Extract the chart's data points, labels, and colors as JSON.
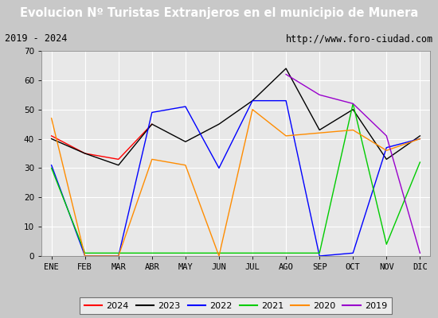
{
  "title": "Evolucion Nº Turistas Extranjeros en el municipio de Munera",
  "subtitle_left": "2019 - 2024",
  "subtitle_right": "http://www.foro-ciudad.com",
  "months": [
    "ENE",
    "FEB",
    "MAR",
    "ABR",
    "MAY",
    "JUN",
    "JUL",
    "AGO",
    "SEP",
    "OCT",
    "NOV",
    "DIC"
  ],
  "series": {
    "2024": {
      "color": "#ff0000",
      "data": [
        41,
        35,
        33,
        45,
        null,
        null,
        null,
        null,
        null,
        null,
        null,
        null
      ]
    },
    "2023": {
      "color": "#000000",
      "data": [
        40,
        35,
        31,
        45,
        39,
        45,
        53,
        64,
        43,
        50,
        33,
        41
      ]
    },
    "2022": {
      "color": "#0000ff",
      "data": [
        31,
        0,
        0,
        49,
        51,
        30,
        53,
        53,
        0,
        1,
        37,
        40
      ]
    },
    "2021": {
      "color": "#00cc00",
      "data": [
        30,
        1,
        1,
        1,
        1,
        1,
        1,
        1,
        1,
        52,
        4,
        32
      ]
    },
    "2020": {
      "color": "#ff8c00",
      "data": [
        47,
        0,
        0,
        33,
        31,
        0,
        50,
        41,
        42,
        43,
        36,
        40
      ]
    },
    "2019": {
      "color": "#9900cc",
      "data": [
        null,
        null,
        null,
        null,
        null,
        null,
        null,
        62,
        55,
        52,
        41,
        1
      ]
    }
  },
  "ylim": [
    0,
    70
  ],
  "yticks": [
    0,
    10,
    20,
    30,
    40,
    50,
    60,
    70
  ],
  "title_bg_color": "#4a86c8",
  "title_text_color": "#ffffff",
  "subtitle_bg_color": "#f0f0f0",
  "outer_bg_color": "#c8c8c8",
  "plot_bg_color": "#e8e8e8",
  "grid_color": "#ffffff",
  "legend_order": [
    "2024",
    "2023",
    "2022",
    "2021",
    "2020",
    "2019"
  ]
}
